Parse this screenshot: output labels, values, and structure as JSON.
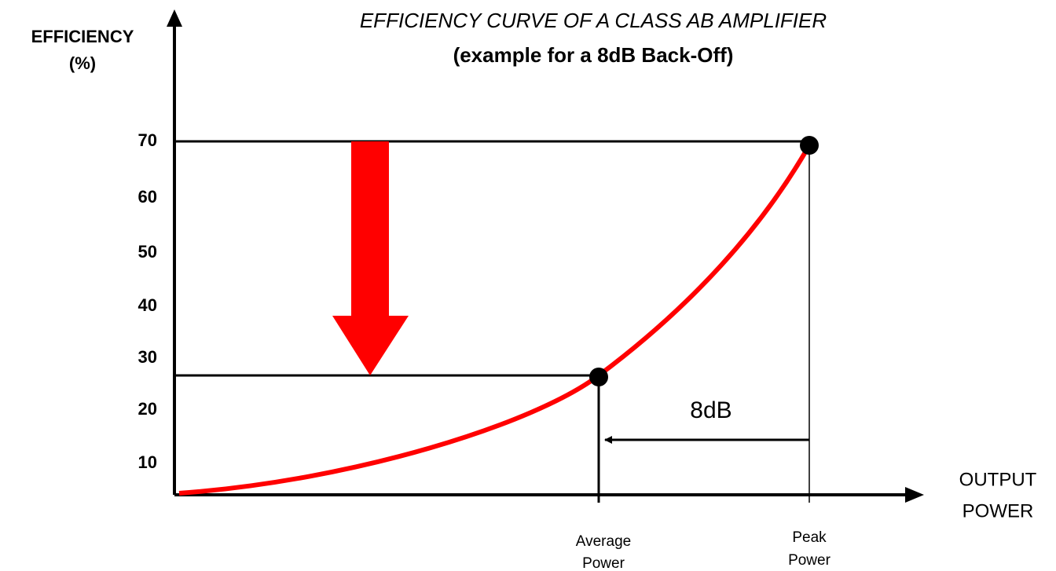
{
  "title": "EFFICIENCY CURVE OF A CLASS AB AMPLIFIER",
  "subtitle": "(example for a 8dB Back-Off)",
  "y_axis": {
    "label": [
      "EFFICIENCY",
      "(%)"
    ],
    "ticks": [
      "70",
      "60",
      "50",
      "40",
      "30",
      "20",
      "10"
    ]
  },
  "x_axis": {
    "label": [
      "OUTPUT",
      "POWER"
    ]
  },
  "points": [
    {
      "label": [
        "Average",
        "Power"
      ]
    },
    {
      "label": [
        "Peak",
        "Power"
      ]
    }
  ],
  "annotation": "8dB"
}
